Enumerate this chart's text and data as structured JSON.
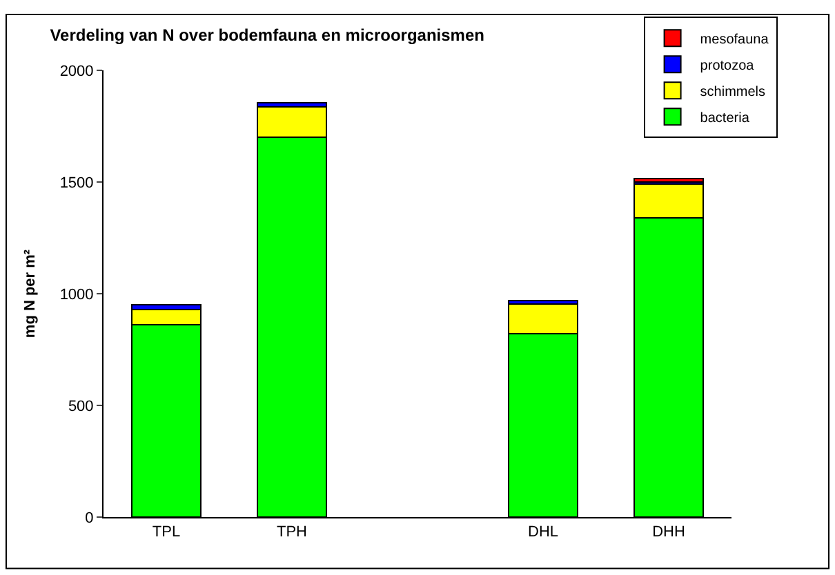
{
  "chart_data": {
    "type": "bar",
    "stacked": true,
    "title": "Verdeling van N over bodemfauna en microorganismen",
    "ylabel": "mg N per m²",
    "categories": [
      "TPL",
      "TPH",
      null,
      "DHL",
      "DHH"
    ],
    "series": [
      {
        "name": "bacteria",
        "color": "#00ff00",
        "values": [
          860,
          1700,
          null,
          820,
          1340
        ]
      },
      {
        "name": "schimmels",
        "color": "#ffff00",
        "values": [
          70,
          135,
          null,
          135,
          150
        ]
      },
      {
        "name": "protozoa",
        "color": "#0000ff",
        "values": [
          20,
          20,
          null,
          15,
          10
        ]
      },
      {
        "name": "mesofauna",
        "color": "#ff0000",
        "values": [
          null,
          null,
          null,
          null,
          15
        ]
      }
    ],
    "ylim": [
      0,
      2000
    ],
    "yticks": [
      0,
      500,
      1000,
      1500,
      2000
    ],
    "legend": "top right"
  }
}
